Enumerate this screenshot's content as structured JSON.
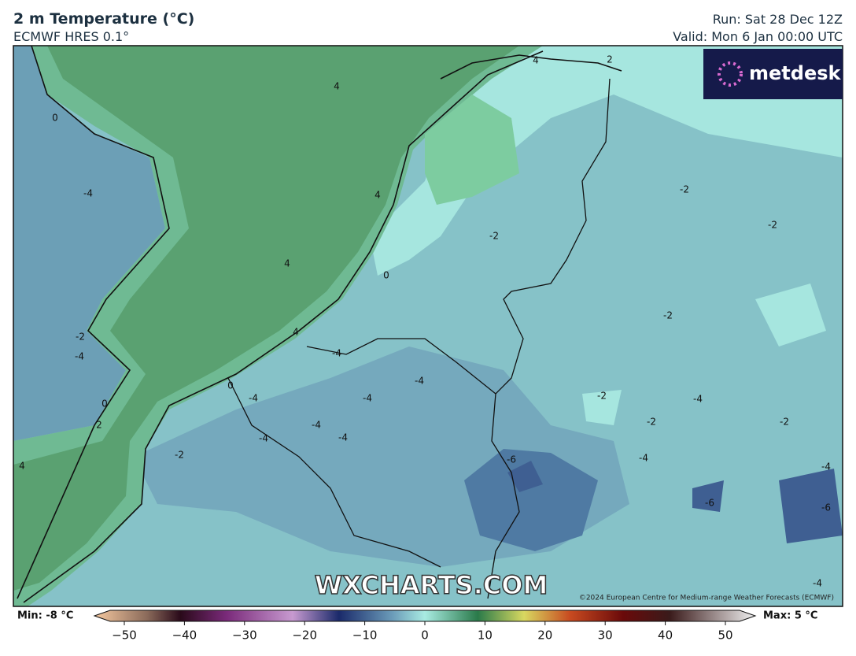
{
  "header": {
    "title": "2 m Temperature (°C)",
    "subtitle": "ECMWF HRES 0.1°",
    "run": "Run: Sat 28 Dec 12Z",
    "valid": "Valid: Mon 6 Jan 00:00 UTC"
  },
  "logo": "metdesk",
  "watermark": "WXCHARTS.COM",
  "copyright": "©2024 European Centre for Medium-range Weather Forecasts (ECMWF)",
  "contour_labels": [
    4,
    0,
    -4,
    4,
    4,
    0,
    -2,
    -2,
    -2,
    -2,
    4,
    -4,
    -2,
    -4,
    0,
    2,
    4,
    0,
    -4,
    -4,
    -4,
    -4,
    -4,
    -4,
    -2,
    -2,
    -2,
    -2,
    -4,
    -4,
    -6,
    -6,
    -4,
    -6,
    -4,
    4,
    2
  ],
  "colorbar": {
    "min": "Min: -8 °C",
    "max": "Max: 5 °C",
    "ticks": [
      {
        "value": -50,
        "label": "−50"
      },
      {
        "value": -40,
        "label": "−40"
      },
      {
        "value": -30,
        "label": "−30"
      },
      {
        "value": -20,
        "label": "−20"
      },
      {
        "value": -10,
        "label": "−10"
      },
      0,
      10,
      20,
      30,
      40,
      50
    ]
  }
}
